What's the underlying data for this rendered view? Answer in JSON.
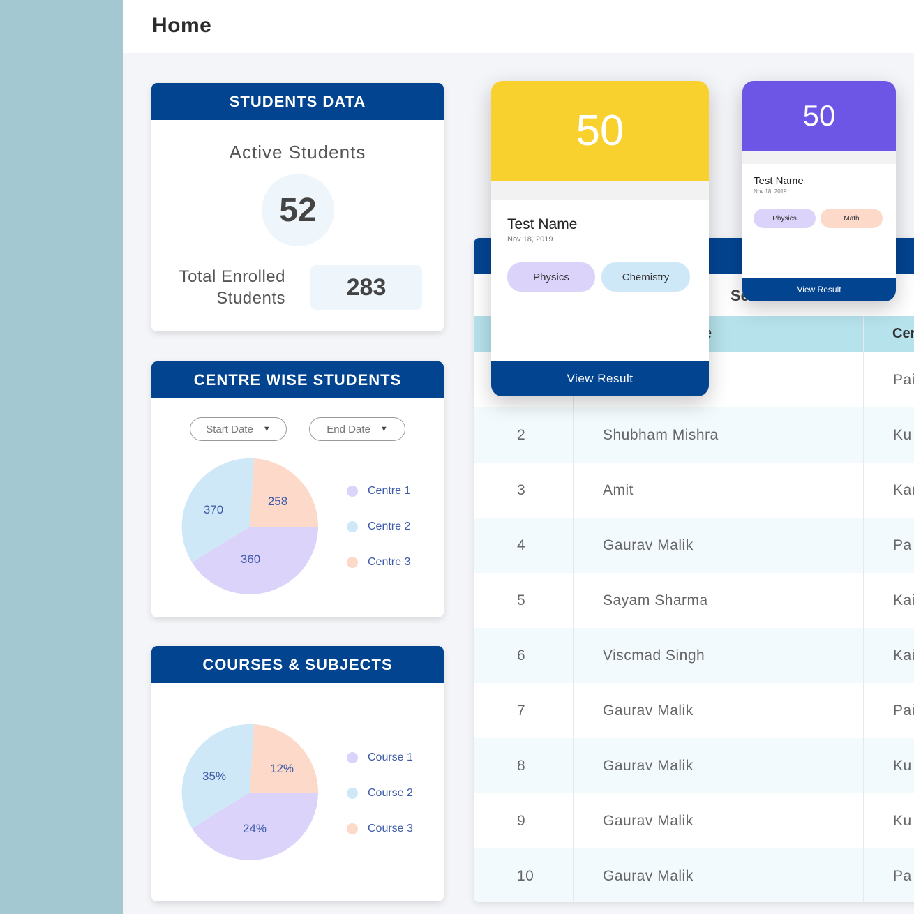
{
  "page": {
    "title": "Home"
  },
  "students_data": {
    "header": "STUDENTS DATA",
    "active_label": "Active Students",
    "active_count": "52",
    "enrolled_label_line1": "Total Enrolled",
    "enrolled_label_line2": "Students",
    "enrolled_count": "283"
  },
  "centre_wise": {
    "header": "CENTRE WISE STUDENTS",
    "start_date": "Start Date",
    "end_date": "End Date",
    "legend": [
      "Centre 1",
      "Centre 2",
      "Centre 3"
    ],
    "slice_labels": [
      "360",
      "370",
      "258"
    ]
  },
  "courses": {
    "header": "COURSES & SUBJECTS",
    "legend": [
      "Course 1",
      "Course 2",
      "Course 3"
    ],
    "slice_labels": [
      "24%",
      "35%",
      "12%"
    ]
  },
  "colors": {
    "navy": "#034491",
    "purple_slice": "#dcd3fb",
    "blue_slice": "#cfe8f8",
    "peach_slice": "#fcd9c9",
    "yellow": "#f8d12e",
    "violet": "#6d55e5"
  },
  "table": {
    "title": "Se",
    "col_name_fragment": "e",
    "col_centre_fragment": "Cer",
    "rows": [
      {
        "sno": "",
        "name": "",
        "centre": "Pai"
      },
      {
        "sno": "2",
        "name": "Shubham Mishra",
        "centre": "Ku"
      },
      {
        "sno": "3",
        "name": "Amit",
        "centre": "Kar"
      },
      {
        "sno": "4",
        "name": "Gaurav Malik",
        "centre": "Pa"
      },
      {
        "sno": "5",
        "name": "Sayam Sharma",
        "centre": "Kai"
      },
      {
        "sno": "6",
        "name": "Viscmad Singh",
        "centre": "Kai"
      },
      {
        "sno": "7",
        "name": "Gaurav Malik",
        "centre": "Pai"
      },
      {
        "sno": "8",
        "name": "Gaurav Malik",
        "centre": "Ku"
      },
      {
        "sno": "9",
        "name": "Gaurav Malik",
        "centre": "Ku"
      },
      {
        "sno": "10",
        "name": "Gaurav Malik",
        "centre": "Pa"
      }
    ]
  },
  "test_card_large": {
    "score": "50",
    "name": "Test Name",
    "date": "Nov 18, 2019",
    "chips": [
      "Physics",
      "Chemistry"
    ],
    "action": "View Result"
  },
  "test_card_small": {
    "score": "50",
    "name": "Test Name",
    "date": "Nov 18, 2019",
    "chips": [
      "Physics",
      "Math"
    ],
    "action": "View Result"
  }
}
